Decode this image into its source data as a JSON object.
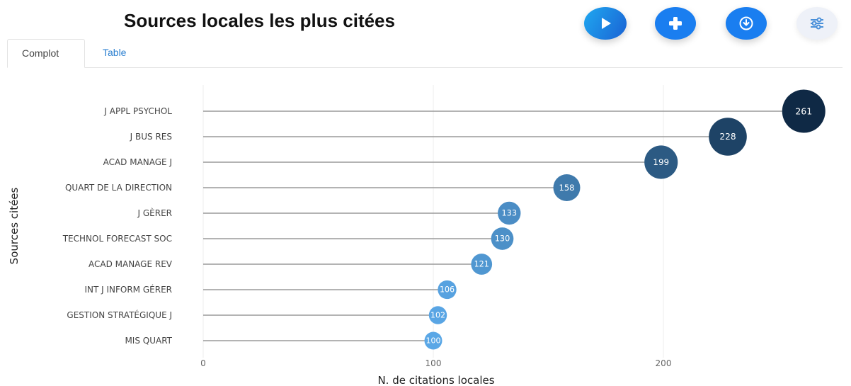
{
  "title": "Sources locales les plus citées",
  "toolbar": {
    "play_icon": "play-icon",
    "add_icon": "plus-icon",
    "download_icon": "download-icon",
    "settings_icon": "sliders-icon"
  },
  "tabs": [
    {
      "label": "Complot",
      "active": true
    },
    {
      "label": "Table",
      "active": false
    }
  ],
  "colors": {
    "accent": "#1a7ef0",
    "point_light": "#5aa7e6",
    "point_dark": "#0f2945",
    "stem": "#9a9a9a"
  },
  "chart_data": {
    "type": "lollipop",
    "categories": [
      "J APPL PSYCHOL",
      "J BUS RES",
      "ACAD MANAGE J",
      "QUART DE LA DIRECTION",
      "J GÈRER",
      "TECHNOL FORECAST SOC",
      "ACAD MANAGE REV",
      "INT J INFORM GÉRER",
      "GESTION STRATÉGIQUE J",
      "MIS QUART"
    ],
    "values": [
      261,
      228,
      199,
      158,
      133,
      130,
      121,
      106,
      102,
      100
    ],
    "xlabel": "N. de citations locales",
    "ylabel": "Sources citées",
    "xticks": [
      0,
      100,
      200
    ],
    "xlim": [
      0,
      270
    ],
    "grid": true,
    "legend": false
  }
}
